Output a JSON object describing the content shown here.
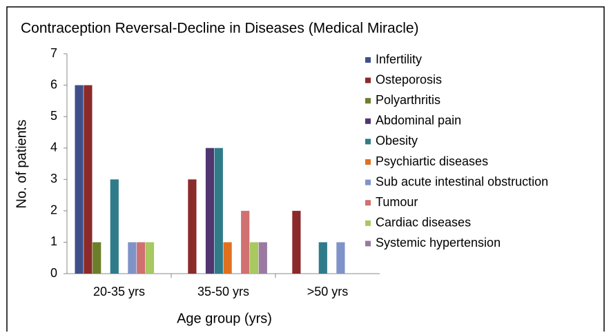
{
  "chart_data": {
    "type": "bar",
    "title": "Contraception Reversal-Decline in Diseases (Medical Miracle)",
    "x_label": "Age group (yrs)",
    "y_label": "No. of patients",
    "categories": [
      "20-35 yrs",
      "35-50 yrs",
      ">50 yrs"
    ],
    "series": [
      {
        "name": "Infertility",
        "color": "#3f4f8a",
        "values": [
          6,
          0,
          0
        ]
      },
      {
        "name": "Osteporosis",
        "color": "#8b2a2a",
        "values": [
          6,
          3,
          2
        ]
      },
      {
        "name": "Polyarthritis",
        "color": "#6b7f2a",
        "values": [
          1,
          0,
          0
        ]
      },
      {
        "name": "Abdominal pain",
        "color": "#4f3670",
        "values": [
          0,
          4,
          0
        ]
      },
      {
        "name": "Obesity",
        "color": "#2f7b8a",
        "values": [
          3,
          4,
          1
        ]
      },
      {
        "name": "Psychiartic diseases",
        "color": "#e0701e",
        "values": [
          0,
          1,
          0
        ]
      },
      {
        "name": "Sub acute intestinal obstruction",
        "color": "#7f93c8",
        "values": [
          1,
          0,
          1
        ]
      },
      {
        "name": "Tumour",
        "color": "#d07070",
        "values": [
          1,
          2,
          0
        ]
      },
      {
        "name": "Cardiac diseases",
        "color": "#a8c860",
        "values": [
          1,
          1,
          0
        ]
      },
      {
        "name": "Systemic hypertension",
        "color": "#9a7aa0",
        "values": [
          0,
          1,
          0
        ]
      }
    ],
    "ylim": [
      0,
      7
    ],
    "yticks": [
      0,
      1,
      2,
      3,
      4,
      5,
      6,
      7
    ],
    "grid": false,
    "legend": "right"
  }
}
